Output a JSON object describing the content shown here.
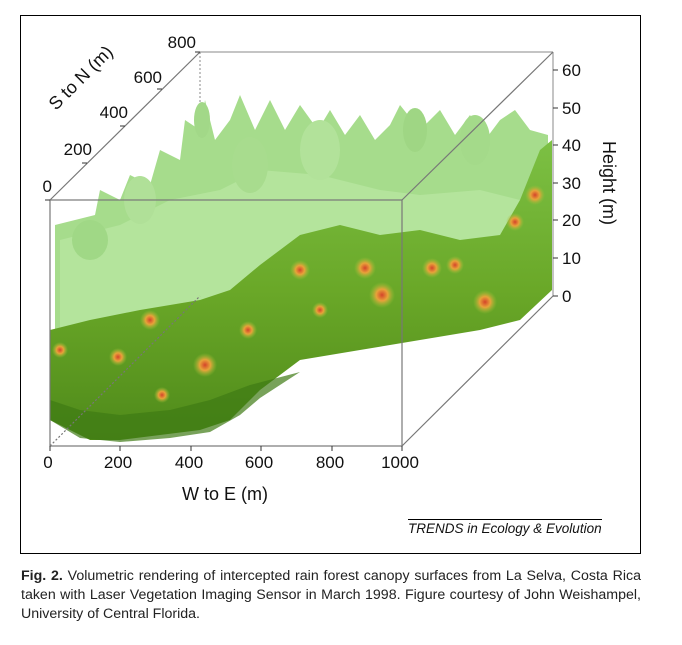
{
  "figure": {
    "credit": "TRENDS in Ecology & Evolution",
    "caption_label": "Fig. 2.",
    "caption_text": " Volumetric rendering of intercepted rain forest canopy surfaces from La Selva, Costa Rica taken with Laser Vegetation Imaging Sensor in March 1998. Figure courtesy of John Weishampel, University of Central Florida."
  },
  "axes": {
    "x": {
      "label": "W to E (m)",
      "ticks": [
        "0",
        "200",
        "400",
        "600",
        "800",
        "1000"
      ]
    },
    "y": {
      "label": "S to N (m)",
      "ticks": [
        "0",
        "200",
        "400",
        "600",
        "800"
      ]
    },
    "z": {
      "label": "Height (m)",
      "ticks": [
        "0",
        "10",
        "20",
        "30",
        "40",
        "50",
        "60"
      ]
    }
  },
  "colors": {
    "light_canopy": "#a8dc8e",
    "dark_canopy": "#5a9a1e",
    "hotspot": "#e0602a"
  }
}
